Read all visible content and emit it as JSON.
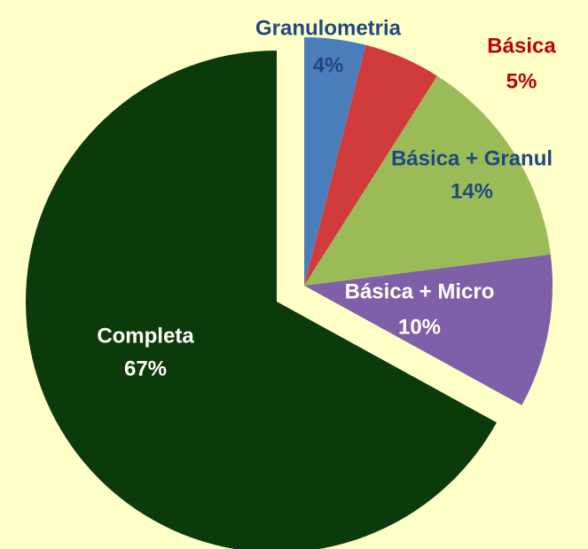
{
  "chart_data": {
    "type": "pie",
    "categories": [
      "Granulometria",
      "Básica",
      "Básica + Granul",
      "Básica + Micro",
      "Completa"
    ],
    "values": [
      4,
      5,
      14,
      10,
      67
    ],
    "value_labels": [
      "4%",
      "5%",
      "14%",
      "10%",
      "67%"
    ],
    "colors": [
      "#4a7ebb",
      "#d13b3b",
      "#9bbb59",
      "#7f5fa8",
      "#0b3b0b"
    ]
  }
}
